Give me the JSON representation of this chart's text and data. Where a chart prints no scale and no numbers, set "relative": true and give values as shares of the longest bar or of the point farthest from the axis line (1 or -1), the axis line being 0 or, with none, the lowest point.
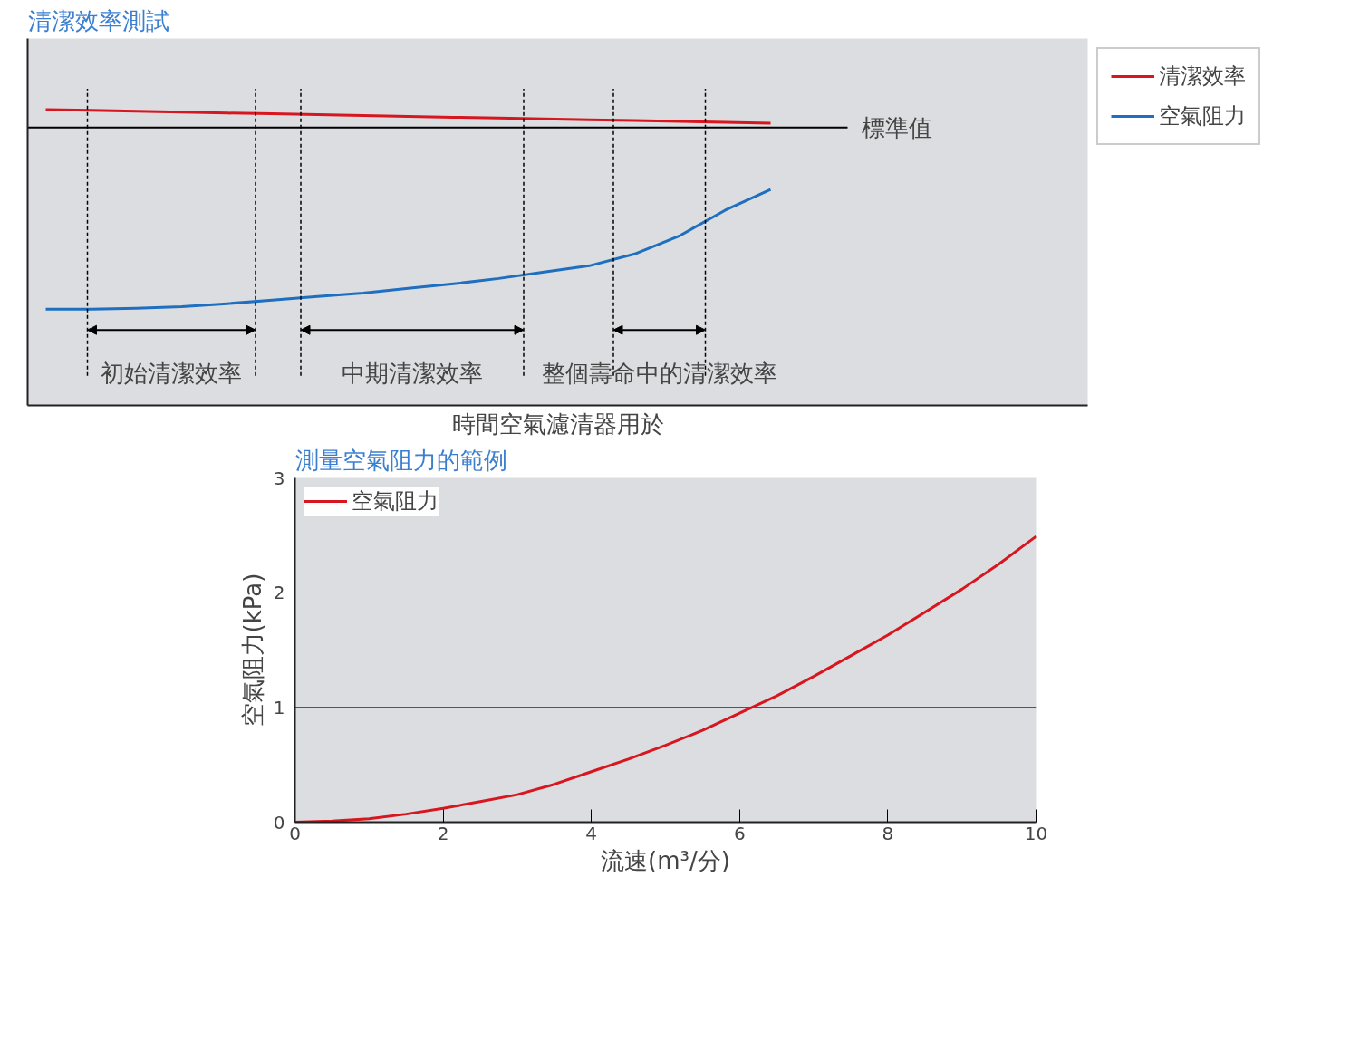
{
  "chart_data": [
    {
      "type": "line",
      "title": "清潔效率測試",
      "xlabel": "時間空氣濾清器用於",
      "relative": true,
      "grid": false,
      "legend": "top right",
      "tick_labels": false,
      "categories": [
        null,
        null,
        null,
        null,
        null,
        null,
        null,
        null,
        null,
        null,
        null,
        null,
        null,
        null,
        null,
        null,
        null
      ],
      "series": [
        {
          "name": "清潔效率",
          "color": "#d7161f",
          "values": [
            1.0,
            0.997,
            0.994,
            0.991,
            0.988,
            0.986,
            0.983,
            0.98,
            0.977,
            0.974,
            0.971,
            0.968,
            0.965,
            0.963,
            0.96,
            0.957,
            0.954
          ]
        },
        {
          "name": "空氣阻力",
          "color": "#1f6fc0",
          "values": [
            0.325,
            0.325,
            0.328,
            0.334,
            0.344,
            0.356,
            0.368,
            0.38,
            0.396,
            0.411,
            0.429,
            0.451,
            0.472,
            0.512,
            0.574,
            0.66,
            0.73
          ]
        }
      ],
      "ref_lines": [
        {
          "axis": "y",
          "value": 0.939,
          "label": "標準值",
          "color": "#000000"
        }
      ],
      "annotations": [
        "0",
        "初始清潔效率",
        "中期清潔效率",
        "整個壽命中的清潔效率"
      ]
    },
    {
      "type": "line",
      "title": "測量空氣阻力的範例",
      "xlabel": "流速(m³/分)",
      "ylabel": "空氣阻力(kPa)",
      "grid": "y",
      "legend": "top left",
      "xlim": [
        0,
        10
      ],
      "ylim": [
        0,
        3
      ],
      "xticks": [
        0,
        2,
        4,
        6,
        8,
        10
      ],
      "yticks": [
        0,
        1,
        2,
        3
      ],
      "series": [
        {
          "name": "空氣阻力",
          "color": "#d7161f",
          "x": [
            0,
            0.5,
            1,
            1.5,
            2,
            2.5,
            3,
            3.5,
            4,
            4.5,
            5,
            5.5,
            6,
            6.5,
            7,
            7.5,
            8,
            8.5,
            9,
            9.5,
            10
          ],
          "values": [
            0,
            0.01,
            0.03,
            0.07,
            0.12,
            0.18,
            0.24,
            0.33,
            0.44,
            0.55,
            0.67,
            0.8,
            0.95,
            1.1,
            1.27,
            1.45,
            1.63,
            1.83,
            2.03,
            2.25,
            2.49
          ]
        }
      ]
    }
  ]
}
